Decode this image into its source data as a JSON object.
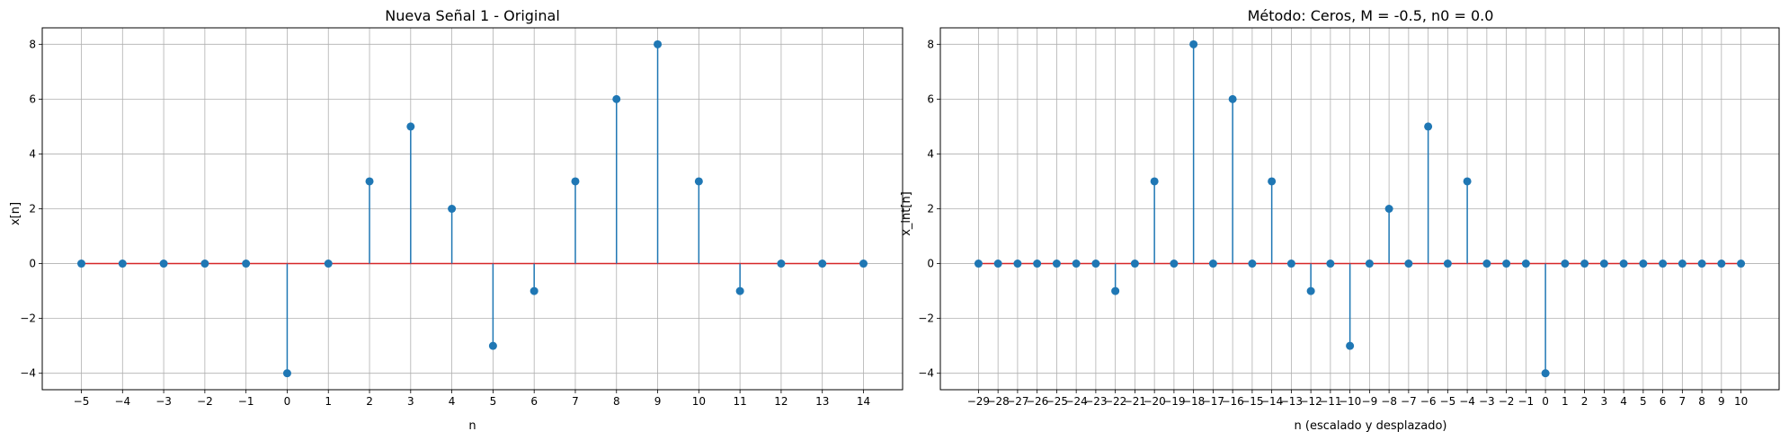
{
  "chart_data": [
    {
      "type": "stem",
      "title": "Nueva Señal 1 - Original",
      "xlabel": "n",
      "ylabel": "x[n]",
      "x": [
        -5,
        -4,
        -3,
        -2,
        -1,
        0,
        1,
        2,
        3,
        4,
        5,
        6,
        7,
        8,
        9,
        10,
        11,
        12,
        13,
        14
      ],
      "y": [
        0,
        0,
        0,
        0,
        0,
        -4,
        0,
        3,
        5,
        2,
        -3,
        -1,
        3,
        6,
        8,
        3,
        -1,
        0,
        0,
        0
      ],
      "xlim": [
        -5.95,
        14.95
      ],
      "ylim": [
        -4.6,
        8.6
      ],
      "xticks": [
        -5,
        -4,
        -3,
        -2,
        -1,
        0,
        1,
        2,
        3,
        4,
        5,
        6,
        7,
        8,
        9,
        10,
        11,
        12,
        13,
        14
      ],
      "xtick_labels": [
        "−5",
        "−4",
        "−3",
        "−2",
        "−1",
        "0",
        "1",
        "2",
        "3",
        "4",
        "5",
        "6",
        "7",
        "8",
        "9",
        "10",
        "11",
        "12",
        "13",
        "14"
      ],
      "yticks": [
        -4,
        -2,
        0,
        2,
        4,
        6,
        8
      ],
      "ytick_labels": [
        "−4",
        "−2",
        "0",
        "2",
        "4",
        "6",
        "8"
      ],
      "grid": true,
      "color": "#1f77b4"
    },
    {
      "type": "stem",
      "title": "Método: Ceros, M = -0.5, n0 = 0.0",
      "xlabel": "n (escalado y desplazado)",
      "ylabel": "x_int[n]",
      "x": [
        -29,
        -28,
        -27,
        -26,
        -25,
        -24,
        -23,
        -22,
        -21,
        -20,
        -19,
        -18,
        -17,
        -16,
        -15,
        -14,
        -13,
        -12,
        -11,
        -10,
        -9,
        -8,
        -7,
        -6,
        -5,
        -4,
        -3,
        -2,
        -1,
        0,
        1,
        2,
        3,
        4,
        5,
        6,
        7,
        8,
        9,
        10
      ],
      "y": [
        0,
        0,
        0,
        0,
        0,
        0,
        0,
        -1,
        0,
        3,
        0,
        8,
        0,
        6,
        0,
        3,
        0,
        -1,
        0,
        -3,
        0,
        2,
        0,
        5,
        0,
        3,
        0,
        0,
        0,
        -4,
        0,
        0,
        0,
        0,
        0,
        0,
        0,
        0,
        0,
        0
      ],
      "xlim": [
        -30.95,
        11.95
      ],
      "ylim": [
        -4.6,
        8.6
      ],
      "xticks": [
        -29,
        -28,
        -27,
        -26,
        -25,
        -24,
        -23,
        -22,
        -21,
        -20,
        -19,
        -18,
        -17,
        -16,
        -15,
        -14,
        -13,
        -12,
        -11,
        -10,
        -9,
        -8,
        -7,
        -6,
        -5,
        -4,
        -3,
        -2,
        -1,
        0,
        1,
        2,
        3,
        4,
        5,
        6,
        7,
        8,
        9,
        10
      ],
      "xtick_labels": [
        "−29",
        "−28",
        "−27",
        "−26",
        "−25",
        "−24",
        "−23",
        "−22",
        "−21",
        "−20",
        "−19",
        "−18",
        "−17",
        "−16",
        "−15",
        "−14",
        "−13",
        "−12",
        "−11",
        "−10",
        "−9",
        "−8",
        "−7",
        "−6",
        "−5",
        "−4",
        "−3",
        "−2",
        "−1",
        "0",
        "1",
        "2",
        "3",
        "4",
        "5",
        "6",
        "7",
        "8",
        "9",
        "10"
      ],
      "yticks": [
        -4,
        -2,
        0,
        2,
        4,
        6,
        8
      ],
      "ytick_labels": [
        "−4",
        "−2",
        "0",
        "2",
        "4",
        "6",
        "8"
      ],
      "grid": true,
      "color": "#1f77b4"
    }
  ]
}
